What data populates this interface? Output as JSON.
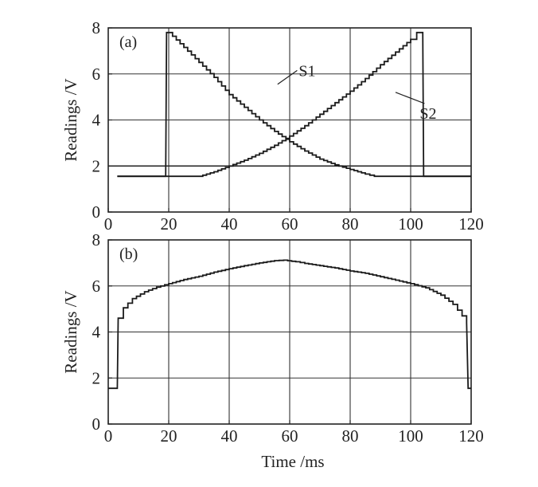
{
  "chart_data": [
    {
      "type": "line",
      "panel_label": "(a)",
      "xlabel": "",
      "ylabel": "Readings /V",
      "xlim": [
        0,
        120
      ],
      "ylim": [
        0,
        8
      ],
      "xticks": [
        0,
        20,
        40,
        60,
        80,
        100,
        120
      ],
      "yticks": [
        0,
        2,
        4,
        6,
        8
      ],
      "grid": true,
      "reference_line_y": 2.0,
      "series": [
        {
          "name": "S1",
          "label_at": [
            63,
            6.15
          ],
          "points": [
            [
              3,
              1.55
            ],
            [
              19,
              1.55
            ],
            [
              19.3,
              7.8
            ],
            [
              20,
              7.8
            ],
            [
              25,
              7.15
            ],
            [
              30,
              6.5
            ],
            [
              35,
              5.85
            ],
            [
              40,
              5.1
            ],
            [
              45,
              4.55
            ],
            [
              50,
              4.0
            ],
            [
              55,
              3.5
            ],
            [
              60,
              3.05
            ],
            [
              65,
              2.65
            ],
            [
              70,
              2.3
            ],
            [
              75,
              2.05
            ],
            [
              80,
              1.85
            ],
            [
              85,
              1.65
            ],
            [
              88,
              1.55
            ],
            [
              120,
              1.55
            ]
          ]
        },
        {
          "name": "S2",
          "label_at": [
            103,
            4.3
          ],
          "points": [
            [
              3,
              1.55
            ],
            [
              30,
              1.55
            ],
            [
              35,
              1.75
            ],
            [
              40,
              2.0
            ],
            [
              45,
              2.25
            ],
            [
              50,
              2.55
            ],
            [
              55,
              2.9
            ],
            [
              60,
              3.3
            ],
            [
              65,
              3.75
            ],
            [
              70,
              4.25
            ],
            [
              75,
              4.75
            ],
            [
              80,
              5.25
            ],
            [
              85,
              5.8
            ],
            [
              90,
              6.4
            ],
            [
              95,
              6.95
            ],
            [
              100,
              7.5
            ],
            [
              102,
              7.8
            ],
            [
              104,
              7.8
            ],
            [
              104.3,
              1.55
            ],
            [
              120,
              1.55
            ]
          ]
        }
      ]
    },
    {
      "type": "line",
      "panel_label": "(b)",
      "xlabel": "Time /ms",
      "ylabel": "Readings /V",
      "xlim": [
        0,
        120
      ],
      "ylim": [
        0,
        8
      ],
      "xticks": [
        0,
        20,
        40,
        60,
        80,
        100,
        120
      ],
      "yticks": [
        0,
        2,
        4,
        6,
        8
      ],
      "grid": true,
      "series": [
        {
          "name": "",
          "points": [
            [
              0,
              1.55
            ],
            [
              3,
              1.55
            ],
            [
              3.3,
              4.6
            ],
            [
              5,
              5.05
            ],
            [
              8,
              5.45
            ],
            [
              12,
              5.75
            ],
            [
              16,
              5.95
            ],
            [
              20,
              6.1
            ],
            [
              25,
              6.28
            ],
            [
              30,
              6.42
            ],
            [
              35,
              6.6
            ],
            [
              40,
              6.75
            ],
            [
              45,
              6.88
            ],
            [
              50,
              7.0
            ],
            [
              55,
              7.1
            ],
            [
              58,
              7.12
            ],
            [
              62,
              7.05
            ],
            [
              65,
              6.98
            ],
            [
              70,
              6.88
            ],
            [
              75,
              6.78
            ],
            [
              80,
              6.65
            ],
            [
              85,
              6.55
            ],
            [
              90,
              6.4
            ],
            [
              95,
              6.25
            ],
            [
              100,
              6.1
            ],
            [
              105,
              5.92
            ],
            [
              110,
              5.6
            ],
            [
              114,
              5.2
            ],
            [
              117,
              4.7
            ],
            [
              118.5,
              4.4
            ],
            [
              119,
              1.55
            ],
            [
              120,
              1.55
            ]
          ]
        }
      ]
    }
  ]
}
